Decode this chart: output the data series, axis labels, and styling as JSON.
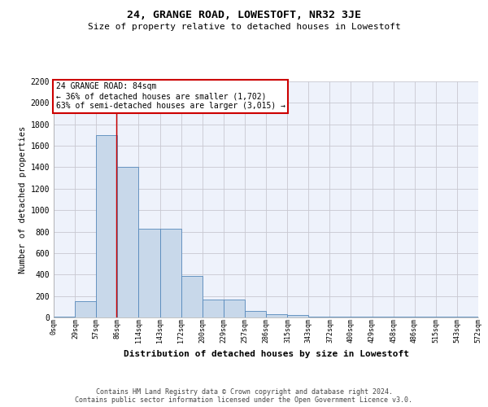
{
  "title": "24, GRANGE ROAD, LOWESTOFT, NR32 3JE",
  "subtitle": "Size of property relative to detached houses in Lowestoft",
  "xlabel": "Distribution of detached houses by size in Lowestoft",
  "ylabel": "Number of detached properties",
  "footnote1": "Contains HM Land Registry data © Crown copyright and database right 2024.",
  "footnote2": "Contains public sector information licensed under the Open Government Licence v3.0.",
  "annotation_line1": "24 GRANGE ROAD: 84sqm",
  "annotation_line2": "← 36% of detached houses are smaller (1,702)",
  "annotation_line3": "63% of semi-detached houses are larger (3,015) →",
  "property_sqm": 84,
  "bin_edges": [
    0,
    29,
    57,
    86,
    114,
    143,
    172,
    200,
    229,
    257,
    286,
    315,
    343,
    372,
    400,
    429,
    458,
    486,
    515,
    543,
    572
  ],
  "bar_values": [
    10,
    150,
    1700,
    1400,
    825,
    825,
    390,
    165,
    165,
    60,
    30,
    25,
    5,
    5,
    5,
    5,
    5,
    5,
    5,
    5
  ],
  "bar_color": "#c8d8ea",
  "bar_edge_color": "#5588bb",
  "grid_color": "#c8c8d0",
  "vline_color": "#cc0000",
  "annotation_box_edge": "#cc0000",
  "background_color": "#eef2fb",
  "ylim": [
    0,
    2200
  ],
  "yticks": [
    0,
    200,
    400,
    600,
    800,
    1000,
    1200,
    1400,
    1600,
    1800,
    2000,
    2200
  ]
}
